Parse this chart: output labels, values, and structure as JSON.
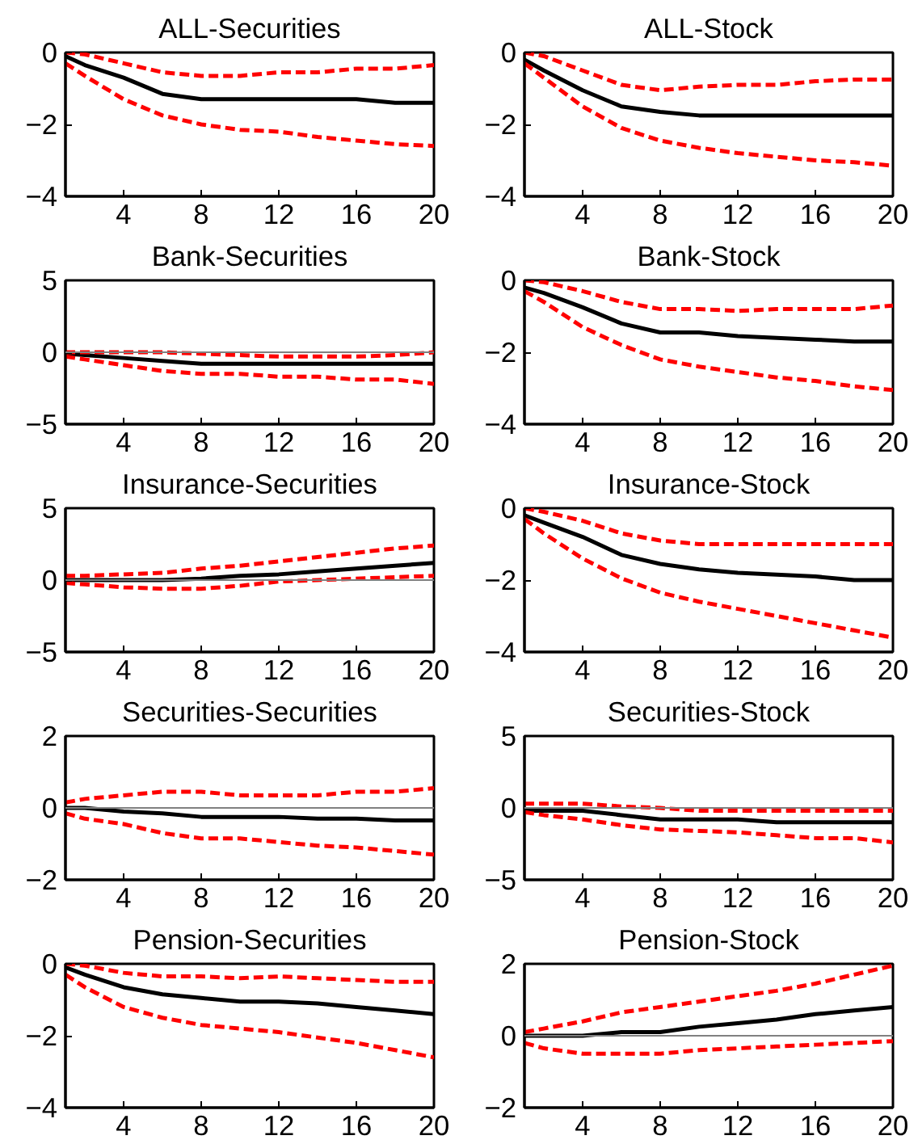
{
  "chart_data": [
    {
      "type": "line",
      "title": "ALL-Securities",
      "x": [
        1,
        2,
        4,
        6,
        8,
        10,
        12,
        14,
        16,
        18,
        20
      ],
      "xlim": [
        1,
        20
      ],
      "xticks": [
        4,
        8,
        12,
        16,
        20
      ],
      "ylim": [
        -4,
        0
      ],
      "yticks": [
        -4,
        -2,
        0
      ],
      "grid": false,
      "series": [
        {
          "color": "#000000",
          "line_style": "solid",
          "values": [
            -0.1,
            -0.35,
            -0.7,
            -1.15,
            -1.3,
            -1.3,
            -1.3,
            -1.3,
            -1.3,
            -1.4,
            -1.4
          ]
        },
        {
          "color": "#ff0000",
          "line_style": "dashed",
          "values": [
            0,
            -0.05,
            -0.3,
            -0.55,
            -0.65,
            -0.65,
            -0.55,
            -0.55,
            -0.45,
            -0.45,
            -0.35
          ]
        },
        {
          "color": "#ff0000",
          "line_style": "dashed",
          "values": [
            -0.3,
            -0.65,
            -1.3,
            -1.75,
            -2.0,
            -2.15,
            -2.2,
            -2.35,
            -2.45,
            -2.55,
            -2.6
          ]
        }
      ]
    },
    {
      "type": "line",
      "title": "ALL-Stock",
      "x": [
        1,
        2,
        4,
        6,
        8,
        10,
        12,
        14,
        16,
        18,
        20
      ],
      "xlim": [
        1,
        20
      ],
      "xticks": [
        4,
        8,
        12,
        16,
        20
      ],
      "ylim": [
        -4,
        0
      ],
      "yticks": [
        -4,
        -2,
        0
      ],
      "grid": false,
      "series": [
        {
          "color": "#000000",
          "line_style": "solid",
          "values": [
            -0.2,
            -0.5,
            -1.05,
            -1.5,
            -1.65,
            -1.75,
            -1.75,
            -1.75,
            -1.75,
            -1.75,
            -1.75
          ]
        },
        {
          "color": "#ff0000",
          "line_style": "dashed",
          "values": [
            0,
            -0.1,
            -0.5,
            -0.9,
            -1.05,
            -0.95,
            -0.9,
            -0.9,
            -0.8,
            -0.75,
            -0.75
          ]
        },
        {
          "color": "#ff0000",
          "line_style": "dashed",
          "values": [
            -0.3,
            -0.7,
            -1.5,
            -2.1,
            -2.45,
            -2.65,
            -2.8,
            -2.9,
            -3.0,
            -3.05,
            -3.15
          ]
        }
      ]
    },
    {
      "type": "line",
      "title": "Bank-Securities",
      "x": [
        1,
        2,
        4,
        6,
        8,
        10,
        12,
        14,
        16,
        18,
        20
      ],
      "xlim": [
        1,
        20
      ],
      "xticks": [
        4,
        8,
        12,
        16,
        20
      ],
      "ylim": [
        -5,
        5
      ],
      "yticks": [
        -5,
        0,
        5
      ],
      "grid": false,
      "ref_lines": [
        {
          "axis": "y",
          "value": 0,
          "color": "#808080"
        }
      ],
      "series": [
        {
          "color": "#000000",
          "line_style": "solid",
          "values": [
            -0.1,
            -0.2,
            -0.4,
            -0.6,
            -0.8,
            -0.8,
            -0.8,
            -0.8,
            -0.8,
            -0.8,
            -0.8
          ]
        },
        {
          "color": "#ff0000",
          "line_style": "dashed",
          "values": [
            0,
            0,
            0,
            0,
            -0.1,
            -0.2,
            -0.3,
            -0.3,
            -0.3,
            -0.2,
            0
          ]
        },
        {
          "color": "#ff0000",
          "line_style": "dashed",
          "values": [
            -0.3,
            -0.5,
            -0.9,
            -1.3,
            -1.5,
            -1.5,
            -1.7,
            -1.7,
            -1.9,
            -1.9,
            -2.2
          ]
        }
      ]
    },
    {
      "type": "line",
      "title": "Bank-Stock",
      "x": [
        1,
        2,
        4,
        6,
        8,
        10,
        12,
        14,
        16,
        18,
        20
      ],
      "xlim": [
        1,
        20
      ],
      "xticks": [
        4,
        8,
        12,
        16,
        20
      ],
      "ylim": [
        -4,
        0
      ],
      "yticks": [
        -4,
        -2,
        0
      ],
      "grid": false,
      "series": [
        {
          "color": "#000000",
          "line_style": "solid",
          "values": [
            -0.2,
            -0.35,
            -0.75,
            -1.2,
            -1.45,
            -1.45,
            -1.55,
            -1.6,
            -1.65,
            -1.7,
            -1.7
          ]
        },
        {
          "color": "#ff0000",
          "line_style": "dashed",
          "values": [
            0,
            -0.05,
            -0.3,
            -0.6,
            -0.8,
            -0.8,
            -0.85,
            -0.8,
            -0.8,
            -0.8,
            -0.7
          ]
        },
        {
          "color": "#ff0000",
          "line_style": "dashed",
          "values": [
            -0.3,
            -0.6,
            -1.3,
            -1.8,
            -2.2,
            -2.4,
            -2.55,
            -2.7,
            -2.8,
            -2.95,
            -3.05
          ]
        }
      ]
    },
    {
      "type": "line",
      "title": "Insurance-Securities",
      "x": [
        1,
        2,
        4,
        6,
        8,
        10,
        12,
        14,
        16,
        18,
        20
      ],
      "xlim": [
        1,
        20
      ],
      "xticks": [
        4,
        8,
        12,
        16,
        20
      ],
      "ylim": [
        -5,
        5
      ],
      "yticks": [
        -5,
        0,
        5
      ],
      "grid": false,
      "ref_lines": [
        {
          "axis": "y",
          "value": 0,
          "color": "#808080"
        }
      ],
      "series": [
        {
          "color": "#000000",
          "line_style": "solid",
          "values": [
            0,
            0,
            0,
            0,
            0.1,
            0.3,
            0.4,
            0.6,
            0.8,
            1.0,
            1.2
          ]
        },
        {
          "color": "#ff0000",
          "line_style": "dashed",
          "values": [
            0.3,
            0.3,
            0.4,
            0.5,
            0.8,
            1.0,
            1.3,
            1.6,
            1.9,
            2.2,
            2.4
          ]
        },
        {
          "color": "#ff0000",
          "line_style": "dashed",
          "values": [
            -0.2,
            -0.3,
            -0.5,
            -0.6,
            -0.6,
            -0.4,
            -0.1,
            0,
            0.1,
            0.2,
            0.3
          ]
        }
      ]
    },
    {
      "type": "line",
      "title": "Insurance-Stock",
      "x": [
        1,
        2,
        4,
        6,
        8,
        10,
        12,
        14,
        16,
        18,
        20
      ],
      "xlim": [
        1,
        20
      ],
      "xticks": [
        4,
        8,
        12,
        16,
        20
      ],
      "ylim": [
        -4,
        0
      ],
      "yticks": [
        -4,
        -2,
        0
      ],
      "grid": false,
      "series": [
        {
          "color": "#000000",
          "line_style": "solid",
          "values": [
            -0.2,
            -0.4,
            -0.8,
            -1.3,
            -1.55,
            -1.7,
            -1.8,
            -1.85,
            -1.9,
            -2.0,
            -2.0
          ]
        },
        {
          "color": "#ff0000",
          "line_style": "dashed",
          "values": [
            0,
            -0.1,
            -0.35,
            -0.7,
            -0.9,
            -1.0,
            -1.0,
            -1.0,
            -1.0,
            -1.0,
            -1.0
          ]
        },
        {
          "color": "#ff0000",
          "line_style": "dashed",
          "values": [
            -0.3,
            -0.7,
            -1.4,
            -1.95,
            -2.35,
            -2.6,
            -2.8,
            -3.0,
            -3.2,
            -3.4,
            -3.6
          ]
        }
      ]
    },
    {
      "type": "line",
      "title": "Securities-Securities",
      "x": [
        1,
        2,
        4,
        6,
        8,
        10,
        12,
        14,
        16,
        18,
        20
      ],
      "xlim": [
        1,
        20
      ],
      "xticks": [
        4,
        8,
        12,
        16,
        20
      ],
      "ylim": [
        -2,
        2
      ],
      "yticks": [
        -2,
        0,
        2
      ],
      "grid": false,
      "ref_lines": [
        {
          "axis": "y",
          "value": 0,
          "color": "#808080"
        }
      ],
      "series": [
        {
          "color": "#000000",
          "line_style": "solid",
          "values": [
            0,
            0,
            -0.1,
            -0.15,
            -0.25,
            -0.25,
            -0.25,
            -0.3,
            -0.3,
            -0.35,
            -0.35
          ]
        },
        {
          "color": "#ff0000",
          "line_style": "dashed",
          "values": [
            0.15,
            0.25,
            0.35,
            0.45,
            0.45,
            0.35,
            0.35,
            0.35,
            0.45,
            0.45,
            0.55
          ]
        },
        {
          "color": "#ff0000",
          "line_style": "dashed",
          "values": [
            -0.15,
            -0.3,
            -0.45,
            -0.7,
            -0.85,
            -0.85,
            -0.95,
            -1.05,
            -1.1,
            -1.2,
            -1.3
          ]
        }
      ]
    },
    {
      "type": "line",
      "title": "Securities-Stock",
      "x": [
        1,
        2,
        4,
        6,
        8,
        10,
        12,
        14,
        16,
        18,
        20
      ],
      "xlim": [
        1,
        20
      ],
      "xticks": [
        4,
        8,
        12,
        16,
        20
      ],
      "ylim": [
        -5,
        5
      ],
      "yticks": [
        -5,
        0,
        5
      ],
      "grid": false,
      "ref_lines": [
        {
          "axis": "y",
          "value": 0,
          "color": "#808080"
        }
      ],
      "series": [
        {
          "color": "#000000",
          "line_style": "solid",
          "values": [
            -0.2,
            -0.2,
            -0.2,
            -0.5,
            -0.8,
            -0.8,
            -0.8,
            -1.0,
            -1.0,
            -1.0,
            -1.0
          ]
        },
        {
          "color": "#ff0000",
          "line_style": "dashed",
          "values": [
            0.3,
            0.3,
            0.3,
            0.1,
            0,
            -0.2,
            -0.2,
            -0.2,
            -0.2,
            -0.2,
            -0.2
          ]
        },
        {
          "color": "#ff0000",
          "line_style": "dashed",
          "values": [
            -0.3,
            -0.5,
            -0.8,
            -1.2,
            -1.5,
            -1.6,
            -1.7,
            -1.9,
            -2.1,
            -2.1,
            -2.4
          ]
        }
      ]
    },
    {
      "type": "line",
      "title": "Pension-Securities",
      "x": [
        1,
        2,
        4,
        6,
        8,
        10,
        12,
        14,
        16,
        18,
        20
      ],
      "xlim": [
        1,
        20
      ],
      "xticks": [
        4,
        8,
        12,
        16,
        20
      ],
      "ylim": [
        -4,
        0
      ],
      "yticks": [
        -4,
        -2,
        0
      ],
      "grid": false,
      "series": [
        {
          "color": "#000000",
          "line_style": "solid",
          "values": [
            -0.1,
            -0.3,
            -0.65,
            -0.85,
            -0.95,
            -1.05,
            -1.05,
            -1.1,
            -1.2,
            -1.3,
            -1.4
          ]
        },
        {
          "color": "#ff0000",
          "line_style": "dashed",
          "values": [
            0,
            -0.05,
            -0.25,
            -0.35,
            -0.35,
            -0.4,
            -0.35,
            -0.4,
            -0.45,
            -0.5,
            -0.5
          ]
        },
        {
          "color": "#ff0000",
          "line_style": "dashed",
          "values": [
            -0.3,
            -0.65,
            -1.2,
            -1.5,
            -1.7,
            -1.8,
            -1.9,
            -2.05,
            -2.2,
            -2.4,
            -2.6
          ]
        }
      ]
    },
    {
      "type": "line",
      "title": "Pension-Stock",
      "x": [
        1,
        2,
        4,
        6,
        8,
        10,
        12,
        14,
        16,
        18,
        20
      ],
      "xlim": [
        1,
        20
      ],
      "xticks": [
        4,
        8,
        12,
        16,
        20
      ],
      "ylim": [
        -2,
        2
      ],
      "yticks": [
        -2,
        0,
        2
      ],
      "grid": false,
      "ref_lines": [
        {
          "axis": "y",
          "value": 0,
          "color": "#808080"
        }
      ],
      "series": [
        {
          "color": "#000000",
          "line_style": "solid",
          "values": [
            0,
            0,
            0,
            0.1,
            0.1,
            0.25,
            0.35,
            0.45,
            0.6,
            0.7,
            0.8
          ]
        },
        {
          "color": "#ff0000",
          "line_style": "dashed",
          "values": [
            0.1,
            0.2,
            0.4,
            0.65,
            0.8,
            0.95,
            1.1,
            1.25,
            1.45,
            1.7,
            1.95
          ]
        },
        {
          "color": "#ff0000",
          "line_style": "dashed",
          "values": [
            -0.2,
            -0.35,
            -0.5,
            -0.5,
            -0.5,
            -0.4,
            -0.35,
            -0.3,
            -0.25,
            -0.2,
            -0.15
          ]
        }
      ]
    }
  ]
}
